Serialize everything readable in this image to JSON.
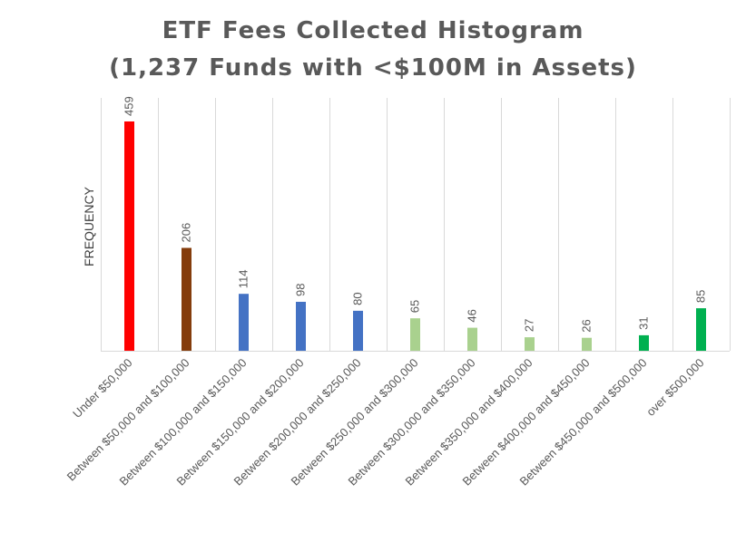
{
  "chart_data": {
    "type": "bar",
    "title": "ETF Fees Collected Histogram",
    "subtitle": "(1,237 Funds with <$100M in Assets)",
    "ylabel": "FREQUENCY",
    "xlabel": "",
    "ylim": [
      0,
      459
    ],
    "grid": {
      "vertical": true,
      "horizontal": false
    },
    "categories": [
      "Under $50,000",
      "Between $50,000 and $100,000",
      "Between $100,000 and $150,000",
      "Between $150,000 and $200,000",
      "Between $200,000 and $250,000",
      "Between $250,000 and $300,000",
      "Between $300,000 and $350,000",
      "Between $350,000 and $400,000",
      "Between $400,000 and $450,000",
      "Between $450,000 and $500,000",
      "over $500,000"
    ],
    "values": [
      459,
      206,
      114,
      98,
      80,
      65,
      46,
      27,
      26,
      31,
      85
    ],
    "colors": [
      "#ff0000",
      "#843c0c",
      "#4472c4",
      "#4472c4",
      "#4472c4",
      "#a9d18e",
      "#a9d18e",
      "#a9d18e",
      "#a9d18e",
      "#00b050",
      "#00b050"
    ]
  }
}
